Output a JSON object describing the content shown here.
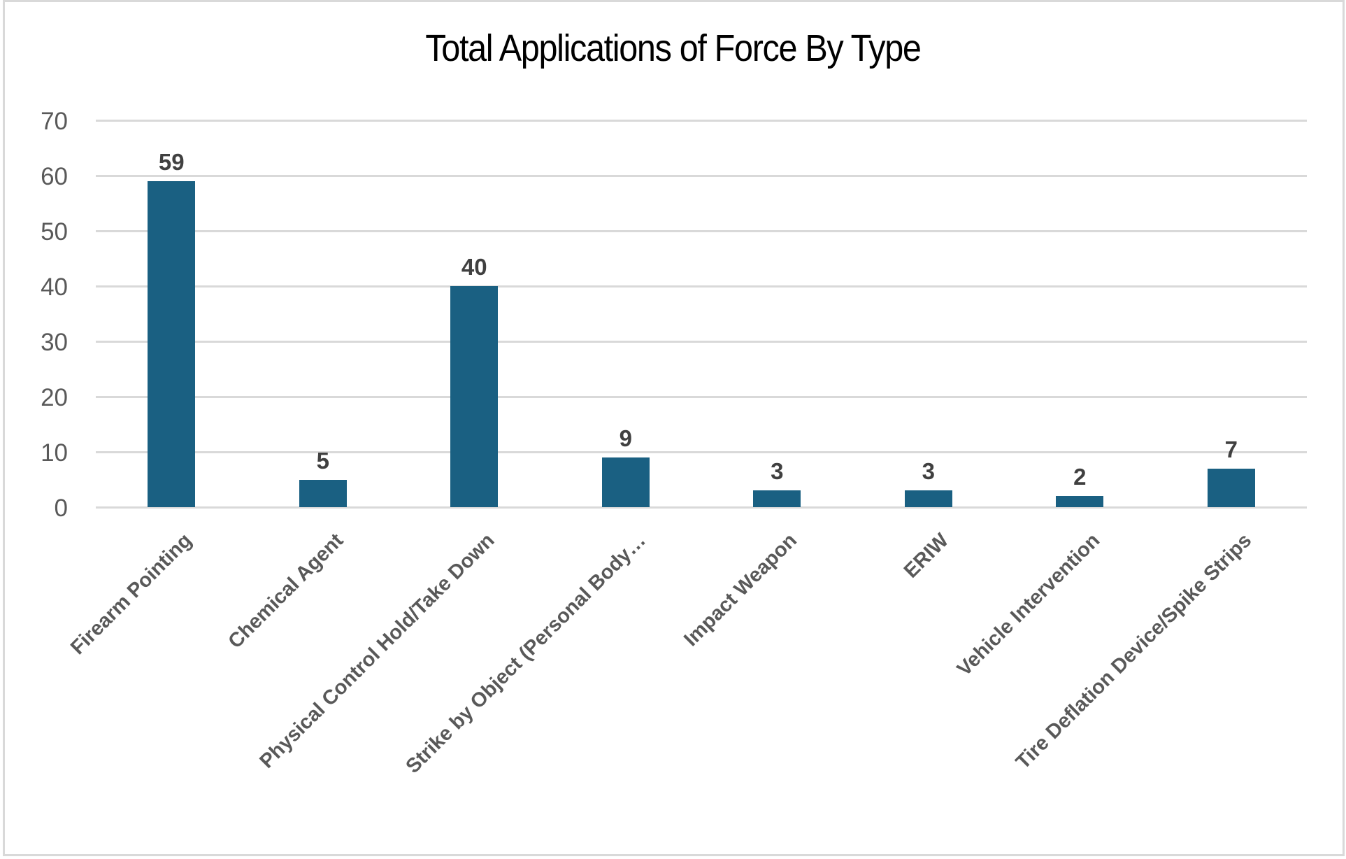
{
  "chart": {
    "title": "Total Applications of Force By Type",
    "colors": {
      "bar": "#1a6082",
      "grid": "#d9d9d9",
      "axis_text": "#595959",
      "value_text": "#404040",
      "border": "#d9d9d9"
    },
    "y_ticks": [
      "70",
      "60",
      "50",
      "40",
      "30",
      "20",
      "10",
      "0"
    ],
    "categories": [
      {
        "label": "Firearm Pointing",
        "value": 59,
        "value_label": "59"
      },
      {
        "label": "Chemical Agent",
        "value": 5,
        "value_label": "5"
      },
      {
        "label": "Physical Control Hold/Take Down",
        "value": 40,
        "value_label": "40"
      },
      {
        "label": "Strike by Object (Personal Body…",
        "value": 9,
        "value_label": "9"
      },
      {
        "label": "Impact Weapon",
        "value": 3,
        "value_label": "3"
      },
      {
        "label": "ERIW",
        "value": 3,
        "value_label": "3"
      },
      {
        "label": "Vehicle Intervention",
        "value": 2,
        "value_label": "2"
      },
      {
        "label": "Tire Deflation Device/Spike Strips",
        "value": 7,
        "value_label": "7"
      }
    ]
  },
  "chart_data": {
    "type": "bar",
    "title": "Total Applications of Force By Type",
    "categories": [
      "Firearm Pointing",
      "Chemical Agent",
      "Physical Control Hold/Take Down",
      "Strike by Object (Personal Body…",
      "Impact Weapon",
      "ERIW",
      "Vehicle Intervention",
      "Tire Deflation Device/Spike Strips"
    ],
    "values": [
      59,
      5,
      40,
      9,
      3,
      3,
      2,
      7
    ],
    "xlabel": "",
    "ylabel": "",
    "ylim": [
      0,
      70
    ],
    "yticks": [
      0,
      10,
      20,
      30,
      40,
      50,
      60,
      70
    ],
    "grid": true,
    "legend": null,
    "data_labels": true,
    "x_label_rotation": -45
  }
}
